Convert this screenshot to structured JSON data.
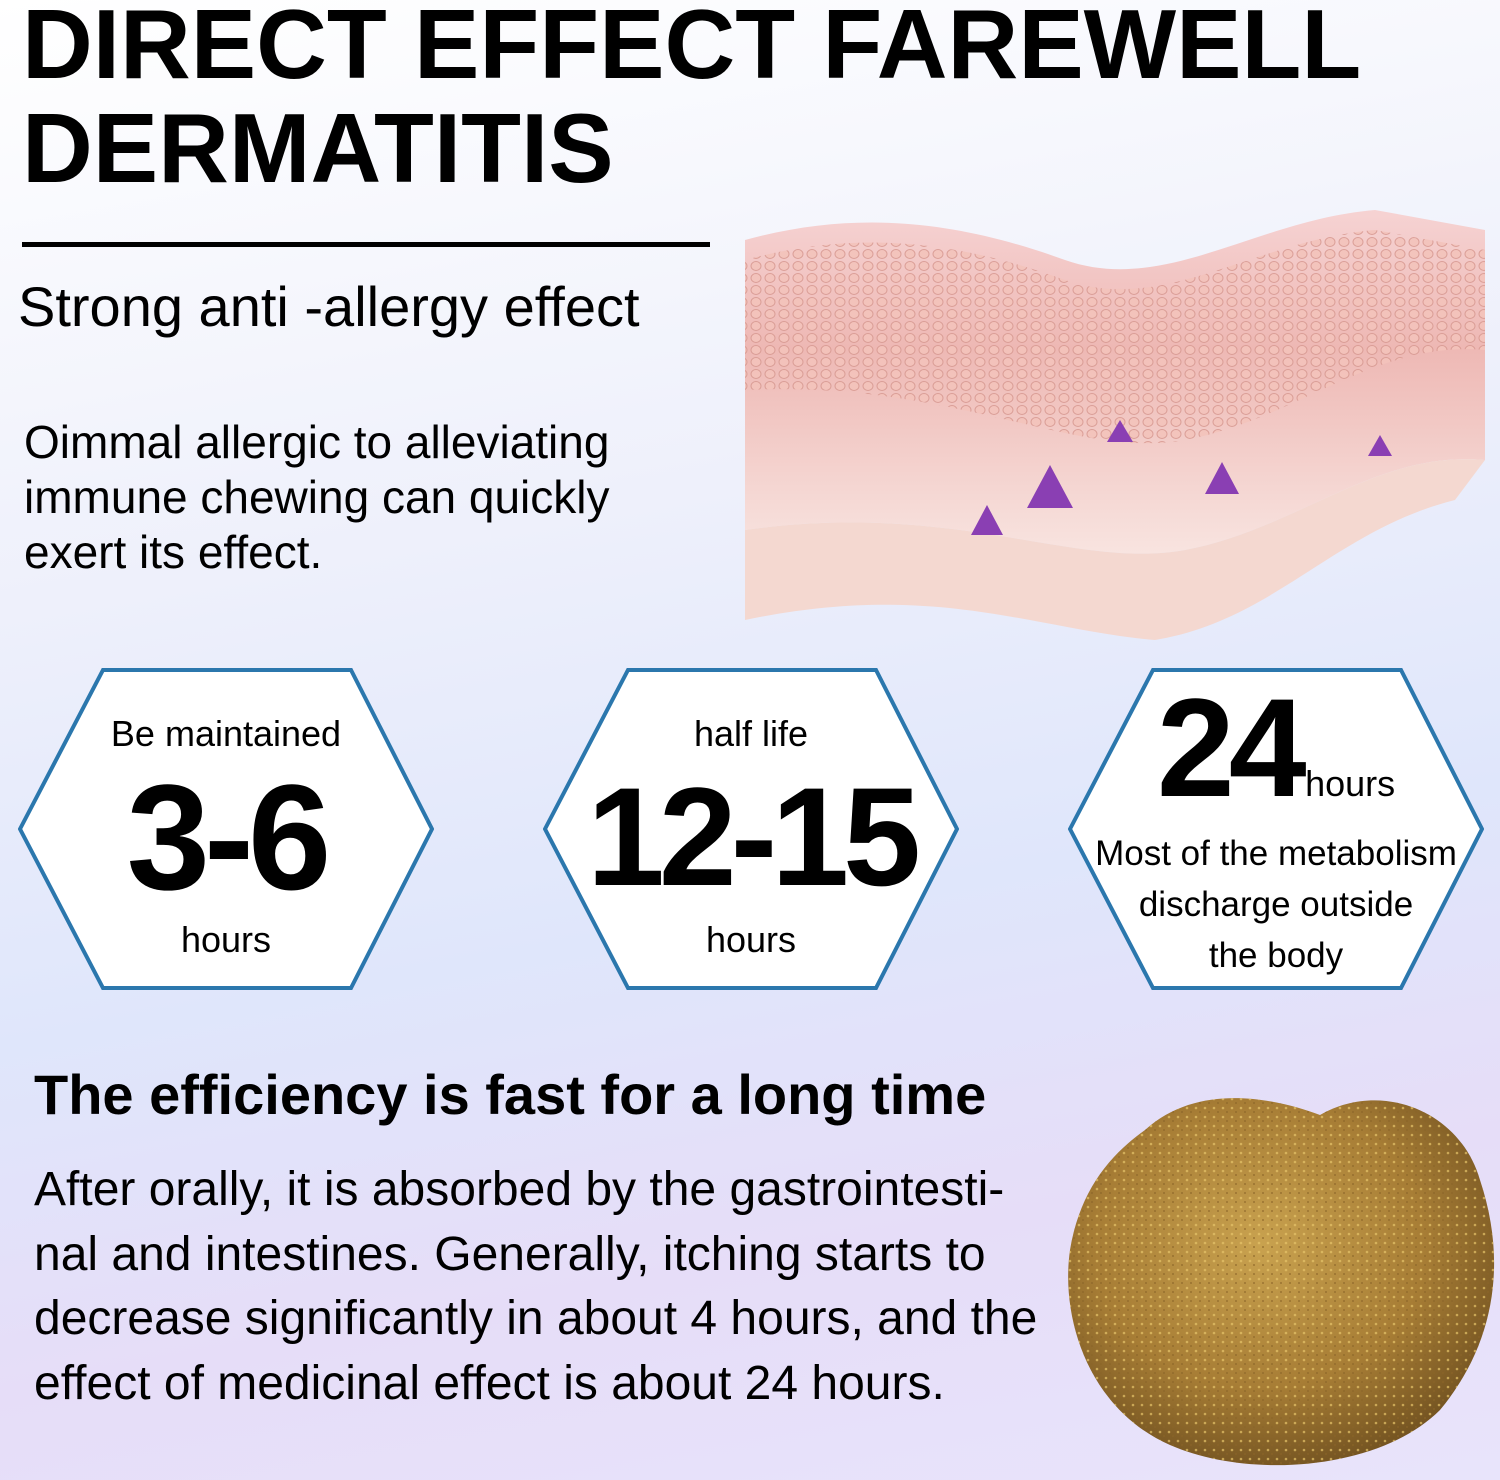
{
  "header": {
    "title_line1": "DIRECT EFFECT FAREWELL",
    "title_line2": "DERMATITIS",
    "subtitle": "Strong anti -allergy effect"
  },
  "intro": {
    "text": "Oimmal allergic to alleviating immune chewing can quickly exert its effect."
  },
  "hexagons": [
    {
      "top_label": "Be maintained",
      "value": "3-6",
      "bottom_label": "hours"
    },
    {
      "top_label": "half life",
      "value": "12-15",
      "bottom_label": "hours"
    },
    {
      "value": "24",
      "unit": "hours",
      "caption_line1": "Most of the metabolism",
      "caption_line2": "discharge outside",
      "caption_line3": "the body"
    }
  ],
  "section": {
    "heading": "The efficiency is fast for a long time",
    "body": "After orally, it is absorbed by the gastrointesti-nal and intestines. Generally, itching starts to decrease significantly in about 4 hours, and the effect of medicinal effect is about 24 hours."
  },
  "colors": {
    "hex_border": "#2b77ad",
    "skin": "#f2c4c0",
    "marker": "#8a3fb3",
    "chew": "#b08a3a"
  },
  "images": {
    "skin": "skin-layers-illustration",
    "chew": "soft-chew-photo"
  }
}
